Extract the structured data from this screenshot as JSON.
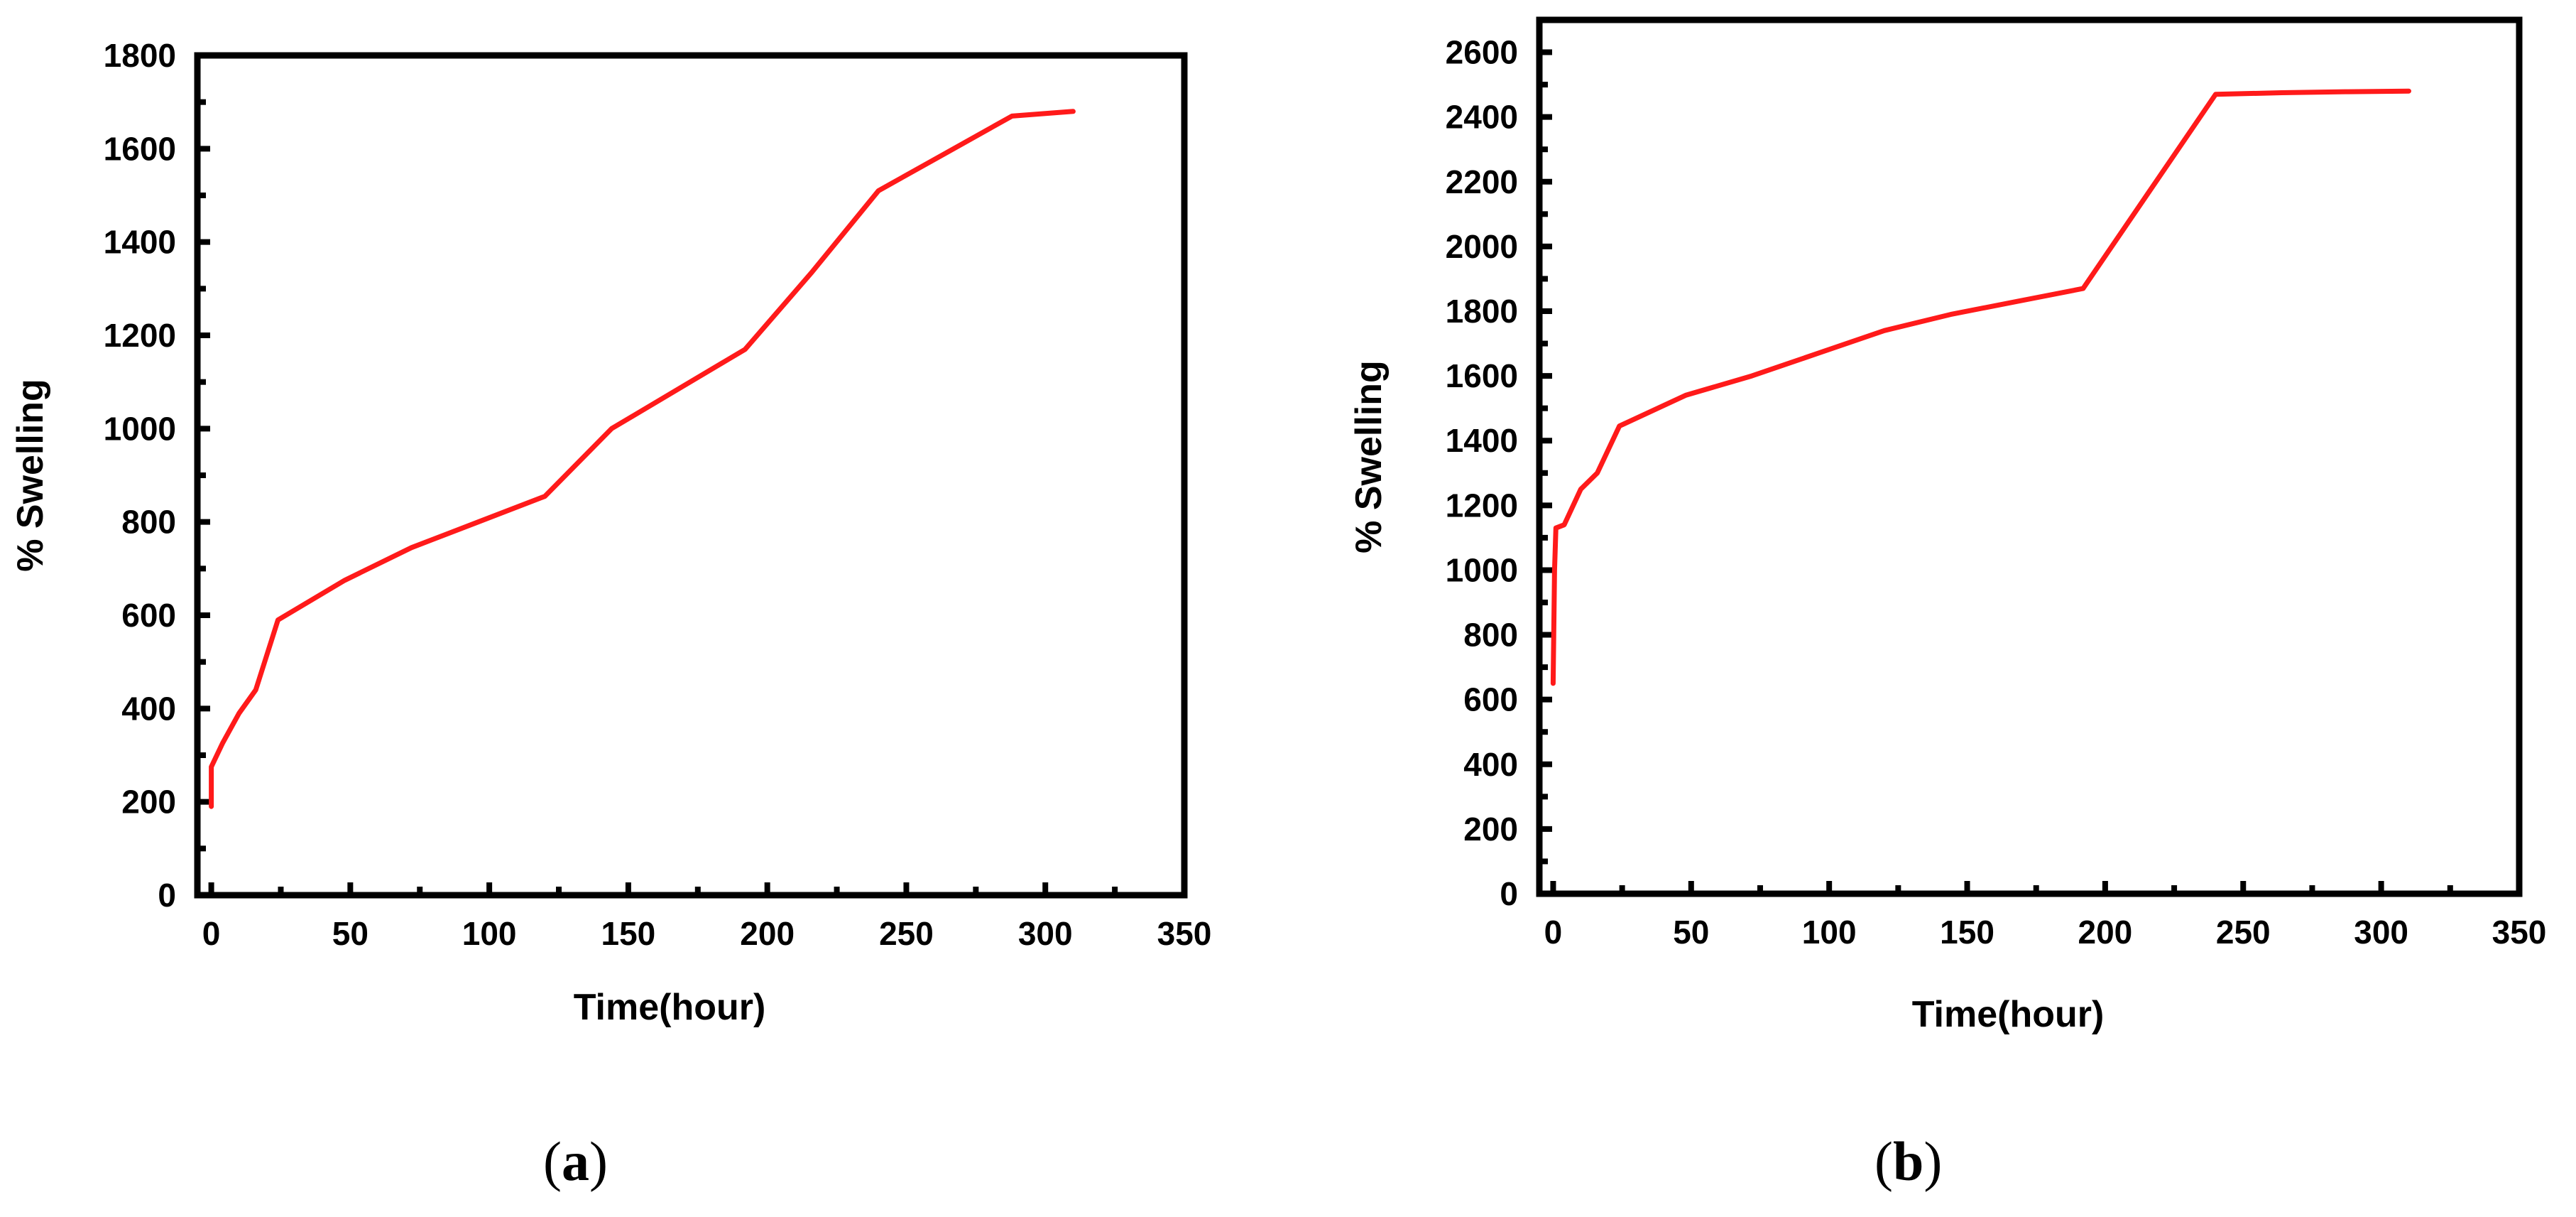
{
  "panel_labels": [
    {
      "open": "(",
      "letter": "a",
      "close": ")"
    },
    {
      "open": "(",
      "letter": "b",
      "close": ")"
    }
  ],
  "colors": {
    "line": "#ff1a1a",
    "axes": "#000000",
    "background": "#ffffff"
  },
  "chart_data": [
    {
      "type": "line",
      "title": "",
      "xlabel": "Time(hour)",
      "ylabel": "% Swelling",
      "xlim": [
        -5,
        350
      ],
      "ylim": [
        0,
        1800
      ],
      "xticks": [
        0,
        50,
        100,
        150,
        200,
        250,
        300,
        350
      ],
      "yticks": [
        0,
        200,
        400,
        600,
        800,
        1000,
        1200,
        1400,
        1600,
        1800
      ],
      "grid": false,
      "legend": "none",
      "series": [
        {
          "x": [
            0,
            0,
            2,
            4,
            10,
            16,
            24,
            48,
            72,
            96,
            120,
            144,
            168,
            192,
            216,
            240,
            264,
            288,
            310
          ],
          "y": [
            190,
            275,
            300,
            325,
            390,
            440,
            590,
            675,
            745,
            800,
            855,
            1000,
            1085,
            1170,
            1335,
            1510,
            1590,
            1670,
            1680
          ]
        }
      ]
    },
    {
      "type": "line",
      "title": "",
      "xlabel": "Time(hour)",
      "ylabel": "% Swelling",
      "xlim": [
        -5,
        350
      ],
      "ylim": [
        0,
        2700
      ],
      "xticks": [
        0,
        50,
        100,
        150,
        200,
        250,
        300,
        350
      ],
      "yticks": [
        0,
        200,
        400,
        600,
        800,
        1000,
        1200,
        1400,
        1600,
        1800,
        2000,
        2200,
        2400,
        2600
      ],
      "grid": false,
      "legend": "none",
      "series": [
        {
          "x": [
            0,
            0.5,
            1,
            4,
            10,
            16,
            24,
            48,
            72,
            96,
            120,
            144,
            168,
            192,
            216,
            240,
            264,
            288,
            310
          ],
          "y": [
            650,
            1000,
            1130,
            1140,
            1250,
            1300,
            1445,
            1540,
            1600,
            1670,
            1740,
            1790,
            1830,
            1870,
            2170,
            2470,
            2475,
            2478,
            2480
          ]
        }
      ]
    }
  ]
}
